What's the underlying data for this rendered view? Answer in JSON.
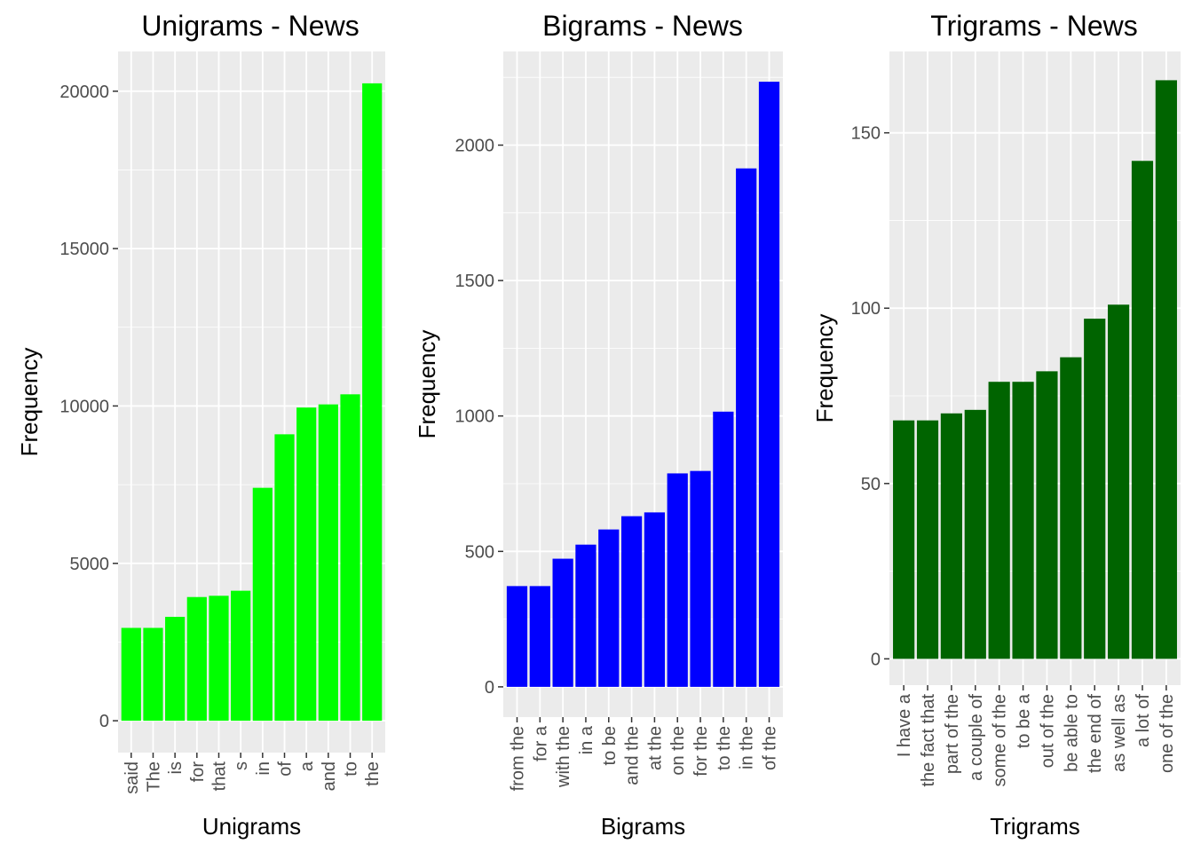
{
  "chart_data": [
    {
      "type": "bar",
      "title": "Unigrams - News",
      "xlabel": "Unigrams",
      "ylabel": "Frequency",
      "color": "#00ff00",
      "categories": [
        "said",
        "The",
        "is",
        "for",
        "that",
        "s",
        "in",
        "of",
        "a",
        "and",
        "to",
        "the"
      ],
      "values": [
        2950,
        2950,
        3300,
        3930,
        3970,
        4130,
        7400,
        9100,
        9950,
        10050,
        10370,
        20250
      ],
      "y_ticks": [
        0,
        5000,
        10000,
        15000,
        20000
      ],
      "y_tick_labels": [
        "0",
        "5000",
        "10000",
        "15000",
        "20000"
      ],
      "ylim": [
        -1012,
        21262
      ],
      "grid": true
    },
    {
      "type": "bar",
      "title": "Bigrams - News",
      "xlabel": "Bigrams",
      "ylabel": "Frequency",
      "color": "#0000ff",
      "categories": [
        "from the",
        "for a",
        "with the",
        "in a",
        "to be",
        "and the",
        "at the",
        "on the",
        "for the",
        "to the",
        "in the",
        "of the"
      ],
      "values": [
        372,
        372,
        473,
        525,
        581,
        630,
        644,
        788,
        797,
        1016,
        1914,
        2234
      ],
      "y_ticks": [
        0,
        500,
        1000,
        1500,
        2000
      ],
      "y_tick_labels": [
        "0",
        "500",
        "1000",
        "1500",
        "2000"
      ],
      "ylim": [
        -111.7,
        2345.7
      ],
      "grid": true
    },
    {
      "type": "bar",
      "title": "Trigrams - News",
      "xlabel": "Trigrams",
      "ylabel": "Frequency",
      "color": "#006400",
      "categories": [
        "I have a",
        "the fact that",
        "part of the",
        "a couple of",
        "some of the",
        "to be a",
        "out of the",
        "be able to",
        "the end of",
        "as well as",
        "a lot of",
        "one of the"
      ],
      "values": [
        68,
        68,
        70,
        71,
        79,
        79,
        82,
        86,
        97,
        101,
        142,
        165
      ],
      "y_ticks": [
        0,
        50,
        100,
        150
      ],
      "y_tick_labels": [
        "0",
        "50",
        "100",
        "150"
      ],
      "ylim": [
        -7.5,
        173.2
      ],
      "grid": true
    }
  ]
}
